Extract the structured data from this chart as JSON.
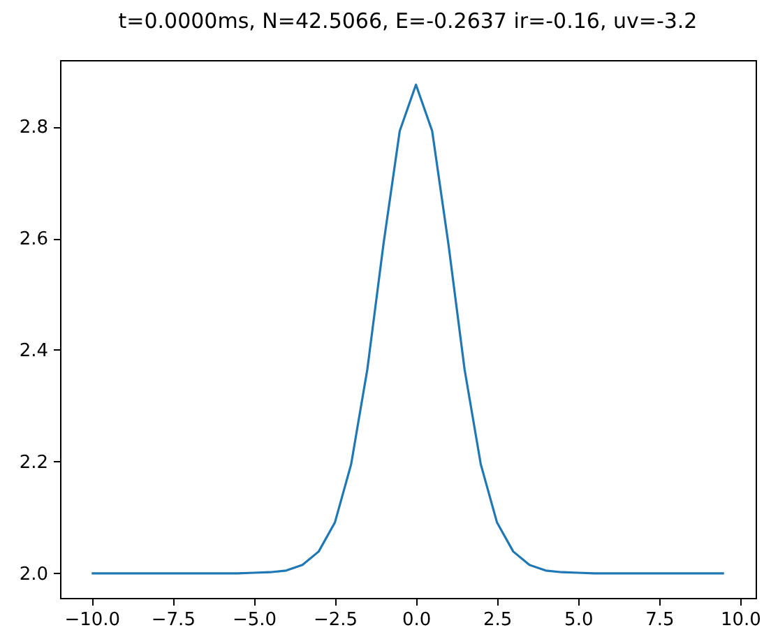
{
  "chart_data": {
    "type": "line",
    "title": "t=0.0000ms, N=42.5066, E=-0.2637 ir=-0.16, uv=-3.2",
    "x": [
      -10,
      -9.5,
      -9,
      -8.5,
      -8,
      -7.5,
      -7,
      -6.5,
      -6,
      -5.5,
      -5,
      -4.5,
      -4,
      -3.5,
      -3,
      -2.5,
      -2,
      -1.5,
      -1,
      -0.5,
      0,
      0.5,
      1,
      1.5,
      2,
      2.5,
      3,
      3.5,
      4,
      4.5,
      5,
      5.5,
      6,
      6.5,
      7,
      7.5,
      8,
      8.5,
      9,
      9.5
    ],
    "series": [
      {
        "color": "#1f77b4",
        "values": [
          2.0,
          2.0,
          2.0,
          2.0,
          2.0,
          2.0,
          2.0,
          2.0,
          2.0,
          2.0,
          2.001,
          2.002,
          2.005,
          2.015,
          2.039,
          2.091,
          2.195,
          2.365,
          2.59,
          2.792,
          2.875,
          2.792,
          2.59,
          2.365,
          2.195,
          2.091,
          2.039,
          2.015,
          2.005,
          2.002,
          2.001,
          2.0,
          2.0,
          2.0,
          2.0,
          2.0,
          2.0,
          2.0,
          2.0,
          2.0
        ]
      }
    ],
    "xlim": [
      -10.975,
      10.475
    ],
    "ylim": [
      1.956,
      2.919
    ],
    "xticks": [
      {
        "value": -10,
        "label": "−10.0"
      },
      {
        "value": -7.5,
        "label": "−7.5"
      },
      {
        "value": -5,
        "label": "−5.0"
      },
      {
        "value": -2.5,
        "label": "−2.5"
      },
      {
        "value": 0,
        "label": "0.0"
      },
      {
        "value": 2.5,
        "label": "2.5"
      },
      {
        "value": 5,
        "label": "5.0"
      },
      {
        "value": 7.5,
        "label": "7.5"
      },
      {
        "value": 10,
        "label": "10.0"
      }
    ],
    "yticks": [
      {
        "value": 2.0,
        "label": "2.0"
      },
      {
        "value": 2.2,
        "label": "2.2"
      },
      {
        "value": 2.4,
        "label": "2.4"
      },
      {
        "value": 2.6,
        "label": "2.6"
      },
      {
        "value": 2.8,
        "label": "2.8"
      }
    ],
    "grid": false,
    "legend": false
  }
}
